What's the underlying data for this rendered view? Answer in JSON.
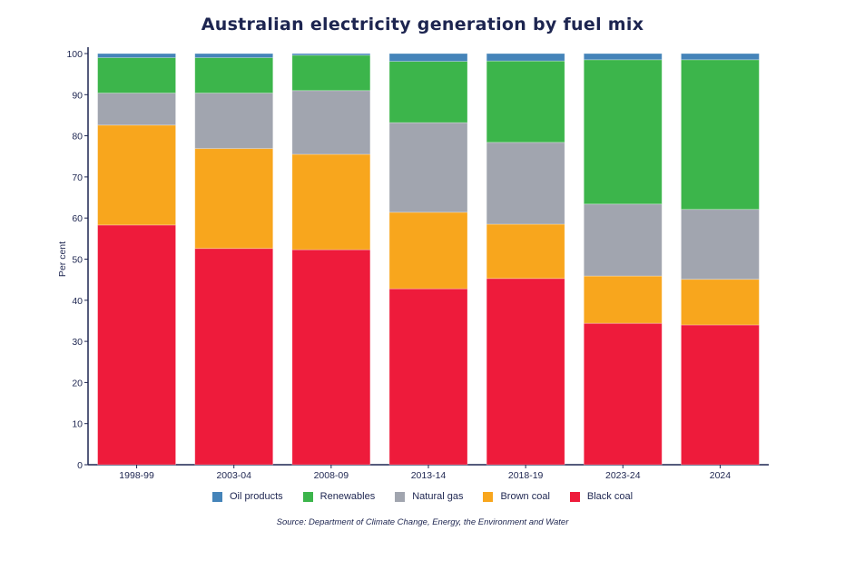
{
  "chart_data": {
    "type": "bar",
    "stacked": true,
    "title": "Australian electricity generation by fuel mix",
    "xlabel": "",
    "ylabel": "Per cent",
    "ylim": [
      0,
      100
    ],
    "yticks": [
      0,
      10,
      20,
      30,
      40,
      50,
      60,
      70,
      80,
      90,
      100
    ],
    "grid": false,
    "legend_position": "bottom",
    "categories": [
      "1998-99",
      "2003-04",
      "2008-09",
      "2013-14",
      "2018-19",
      "2023-24",
      "2024"
    ],
    "series": [
      {
        "name": "Black coal",
        "color": "#ee1b3b",
        "values": [
          58.3,
          52.6,
          52.3,
          42.8,
          45.3,
          34.4,
          34.0
        ]
      },
      {
        "name": "Brown coal",
        "color": "#f8a61d",
        "values": [
          24.3,
          24.3,
          23.2,
          18.6,
          13.2,
          11.5,
          11.1
        ]
      },
      {
        "name": "Natural gas",
        "color": "#a1a5af",
        "values": [
          7.8,
          13.5,
          15.5,
          21.8,
          19.9,
          17.5,
          17.0
        ]
      },
      {
        "name": "Renewables",
        "color": "#3cb54b",
        "values": [
          8.6,
          8.6,
          8.6,
          14.9,
          19.8,
          35.1,
          36.4
        ]
      },
      {
        "name": "Oil products",
        "color": "#4584b9",
        "values": [
          1.0,
          1.0,
          0.4,
          1.9,
          1.8,
          1.5,
          1.5
        ]
      }
    ],
    "legend_order": [
      "Oil products",
      "Renewables",
      "Natural gas",
      "Brown coal",
      "Black coal"
    ],
    "source": "Source: Department of Climate Change, Energy, the Environment and Water"
  }
}
